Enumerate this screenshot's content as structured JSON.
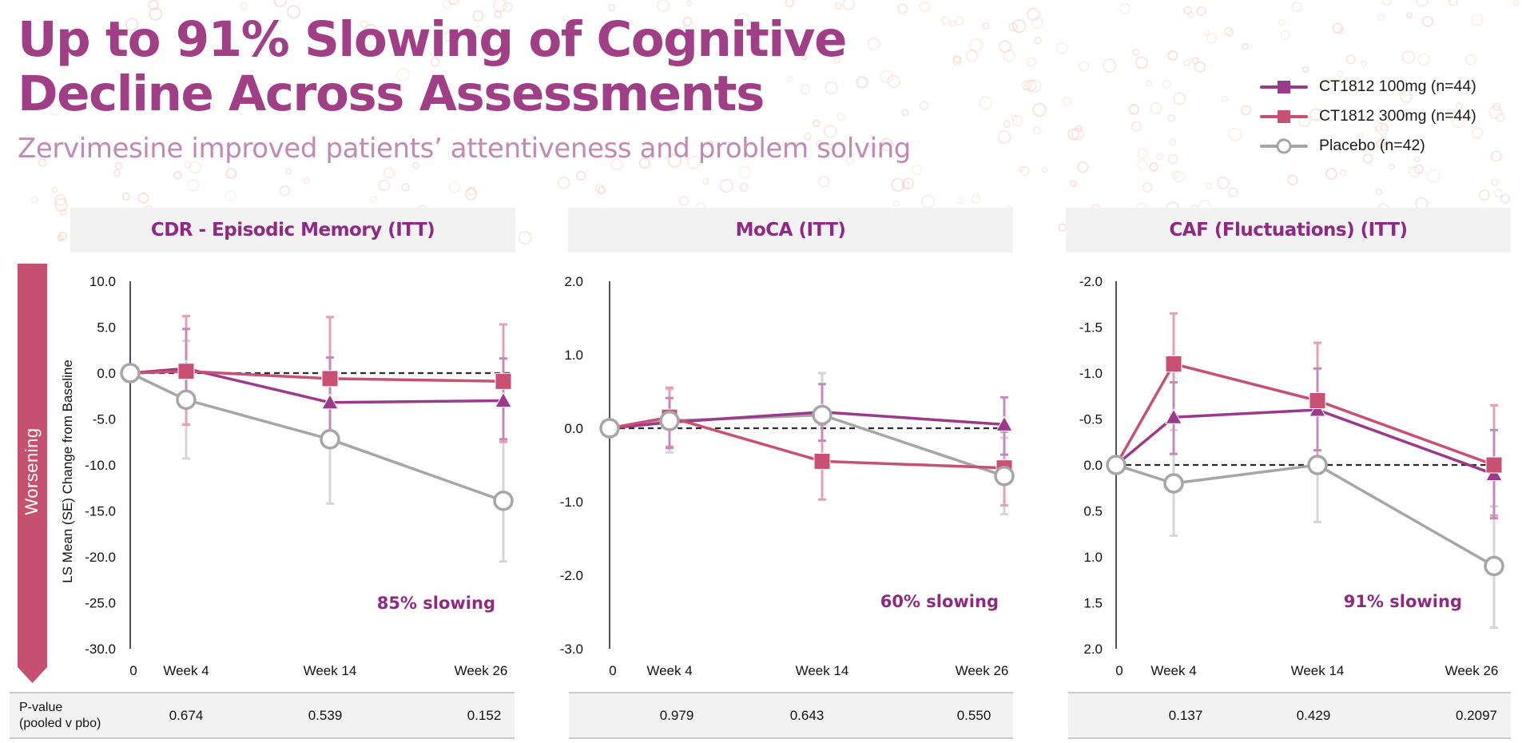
{
  "header": {
    "title_line1": "Up to 91% Slowing of Cognitive",
    "title_line2": "Decline Across Assessments",
    "subtitle": "Zervimesine improved patients’ attentiveness and problem solving"
  },
  "legend": [
    {
      "label": "CT1812 100mg (n=44)",
      "marker": "square",
      "color": "#9b3a8a"
    },
    {
      "label": "CT1812 300mg (n=44)",
      "marker": "square",
      "color": "#c94f73"
    },
    {
      "label": "Placebo (n=42)",
      "marker": "open-circle",
      "color": "#a6a6a6"
    }
  ],
  "side": {
    "worsening_label": "Worsening",
    "worsening_color": "#c5506f",
    "ylabel": "LS Mean (SE) Change from Baseline"
  },
  "colors": {
    "dose_100": "#9b3a8a",
    "dose_300": "#c94f73",
    "placebo": "#a6a6a6",
    "title": "#a03f86",
    "annotation": "#8e2a83"
  },
  "pvalue_row_label_line1": "P-value",
  "pvalue_row_label_line2": "(pooled v pbo)",
  "chart_data": [
    {
      "type": "line",
      "title": "CDR - Episodic Memory (ITT)",
      "xlabel": "",
      "ylabel": "LS Mean (SE) Change from Baseline",
      "categories": [
        "0",
        "Week 4",
        "Week 14",
        "Week 26"
      ],
      "x": [
        0,
        4,
        14,
        26
      ],
      "ylim": [
        -30,
        10
      ],
      "y_inverted": false,
      "yticks": [
        "10.0",
        "5.0",
        "0.0",
        "-5.0",
        "-10.0",
        "-15.0",
        "-20.0",
        "-25.0",
        "-30.0"
      ],
      "ytick_values": [
        10,
        5,
        0,
        -5,
        -10,
        -15,
        -20,
        -25,
        -30
      ],
      "reference_line": 0,
      "annotation": "85% slowing",
      "pvalues": [
        "0.674",
        "0.539",
        "0.152"
      ],
      "series": [
        {
          "name": "CT1812 100mg (n=44)",
          "marker": "triangle",
          "values": [
            0,
            0.5,
            -3.2,
            -3.0
          ],
          "err_low": [
            0,
            -3.5,
            -8.0,
            -7.2
          ],
          "err_high": [
            0,
            4.8,
            1.7,
            1.6
          ]
        },
        {
          "name": "CT1812 300mg (n=44)",
          "marker": "square",
          "values": [
            0,
            0.2,
            -0.6,
            -0.9
          ],
          "err_low": [
            0,
            -5.6,
            -7.4,
            -7.5
          ],
          "err_high": [
            0,
            6.2,
            6.1,
            5.3
          ]
        },
        {
          "name": "Placebo (n=42)",
          "marker": "open-circle",
          "values": [
            0,
            -2.9,
            -7.2,
            -13.9
          ],
          "err_low": [
            0,
            -9.3,
            -14.2,
            -20.5
          ],
          "err_high": [
            0,
            3.5,
            -0.2,
            -7.3
          ]
        }
      ]
    },
    {
      "type": "line",
      "title": "MoCA (ITT)",
      "xlabel": "",
      "ylabel": "",
      "categories": [
        "0",
        "Week 4",
        "Week 14",
        "Week 26"
      ],
      "x": [
        0,
        4,
        14,
        26
      ],
      "ylim": [
        -3,
        2
      ],
      "y_inverted": false,
      "yticks": [
        "2.0",
        "1.0",
        "0.0",
        "-1.0",
        "-2.0",
        "-3.0"
      ],
      "ytick_values": [
        2,
        1,
        0,
        -1,
        -2,
        -3
      ],
      "reference_line": 0,
      "annotation": "60% slowing",
      "pvalues": [
        "0.979",
        "0.643",
        "0.550"
      ],
      "series": [
        {
          "name": "CT1812 100mg (n=44)",
          "marker": "triangle",
          "values": [
            0,
            0.08,
            0.22,
            0.05
          ],
          "err_low": [
            0,
            -0.27,
            -0.17,
            -0.36
          ],
          "err_high": [
            0,
            0.41,
            0.6,
            0.42
          ]
        },
        {
          "name": "CT1812 300mg (n=44)",
          "marker": "square",
          "values": [
            0,
            0.15,
            -0.45,
            -0.54
          ],
          "err_low": [
            0,
            -0.25,
            -0.97,
            -1.05
          ],
          "err_high": [
            0,
            0.55,
            0.05,
            -0.05
          ]
        },
        {
          "name": "Placebo (n=42)",
          "marker": "open-circle",
          "values": [
            0,
            0.1,
            0.18,
            -0.65
          ],
          "err_low": [
            0,
            -0.33,
            -0.4,
            -1.17
          ],
          "err_high": [
            0,
            0.53,
            0.75,
            -0.13
          ]
        }
      ]
    },
    {
      "type": "line",
      "title": "CAF (Fluctuations) (ITT)",
      "xlabel": "",
      "ylabel": "",
      "categories": [
        "0",
        "Week 4",
        "Week 14",
        "Week 26"
      ],
      "x": [
        0,
        4,
        14,
        26
      ],
      "ylim": [
        -2,
        2
      ],
      "y_inverted": true,
      "yticks": [
        "-2.0",
        "-1.5",
        "-1.0",
        "-0.5",
        "0.0",
        "0.5",
        "1.0",
        "1.5",
        "2.0"
      ],
      "ytick_values": [
        -2,
        -1.5,
        -1,
        -0.5,
        0,
        0.5,
        1,
        1.5,
        2
      ],
      "reference_line": 0,
      "annotation": "91% slowing",
      "pvalues": [
        "0.137",
        "0.429",
        "0.2097"
      ],
      "series": [
        {
          "name": "CT1812 100mg (n=44)",
          "marker": "triangle",
          "values": [
            0,
            -0.52,
            -0.6,
            0.1
          ],
          "err_low": [
            0,
            -0.9,
            -1.05,
            -0.38
          ],
          "err_high": [
            0,
            -0.12,
            -0.16,
            0.58
          ]
        },
        {
          "name": "CT1812 300mg (n=44)",
          "marker": "square",
          "values": [
            0,
            -1.1,
            -0.7,
            0.0
          ],
          "err_low": [
            0,
            -1.65,
            -1.33,
            -0.65
          ],
          "err_high": [
            0,
            -0.55,
            -0.07,
            0.55
          ]
        },
        {
          "name": "Placebo (n=42)",
          "marker": "open-circle",
          "values": [
            0,
            0.2,
            0.0,
            1.1
          ],
          "err_low": [
            0,
            -0.38,
            -0.62,
            0.45
          ],
          "err_high": [
            0,
            0.77,
            0.62,
            1.77
          ]
        }
      ]
    }
  ]
}
